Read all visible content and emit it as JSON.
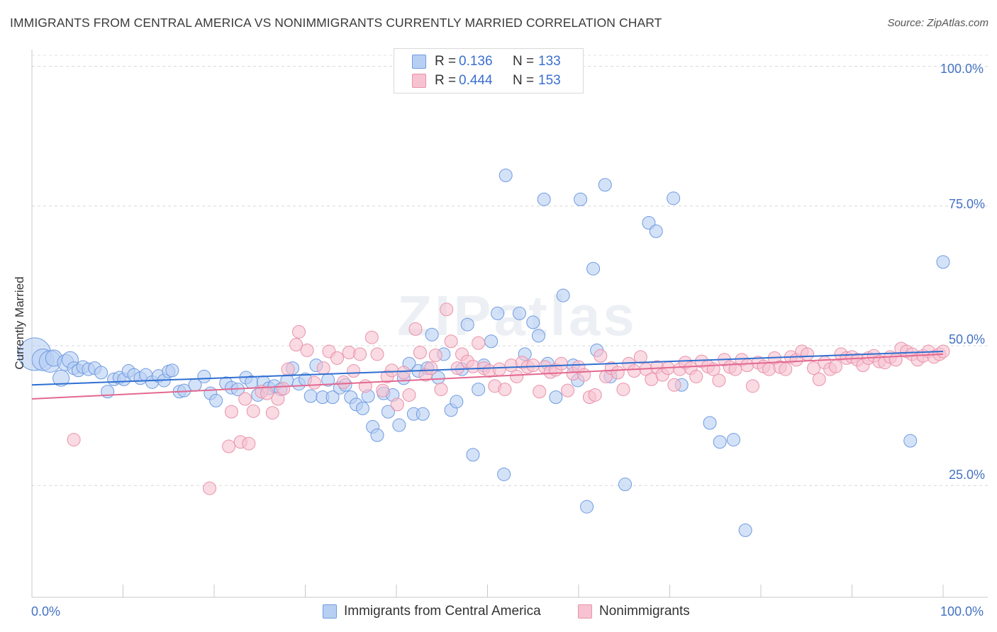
{
  "title": "IMMIGRANTS FROM CENTRAL AMERICA VS NONIMMIGRANTS CURRENTLY MARRIED CORRELATION CHART",
  "source": "Source: ZipAtlas.com",
  "watermark": "ZIPatlas",
  "chart_data": {
    "type": "scatter",
    "title": "IMMIGRANTS FROM CENTRAL AMERICA VS NONIMMIGRANTS CURRENTLY MARRIED CORRELATION CHART",
    "xlabel": "",
    "ylabel": "Currently Married",
    "xlim": [
      0,
      100
    ],
    "ylim": [
      5,
      103
    ],
    "x_tick_labels": [
      "0.0%",
      "100.0%"
    ],
    "y_ticks": [
      25,
      50,
      75,
      100
    ],
    "y_tick_labels": [
      "25.0%",
      "50.0%",
      "75.0%",
      "100.0%"
    ],
    "grid": true,
    "legend_position": "top-center",
    "legend": [
      {
        "r_label": "R =",
        "r_value": "0.136",
        "n_label": "N =",
        "n_value": "133"
      },
      {
        "r_label": "R =",
        "r_value": "0.444",
        "n_label": "N =",
        "n_value": "153"
      }
    ],
    "series": [
      {
        "name": "Immigrants from Central America",
        "color": "#6f9be0",
        "fill": "#b7cff3",
        "trend": [
          [
            0,
            43.0
          ],
          [
            100,
            49.0
          ]
        ],
        "points": [
          [
            0.3,
            48.5,
            3
          ],
          [
            1.2,
            47.5,
            2
          ],
          [
            2.0,
            47.2,
            2
          ],
          [
            2.4,
            47.8,
            1.5
          ],
          [
            3.2,
            44.2,
            1.5
          ],
          [
            3.7,
            47.0,
            1.5
          ],
          [
            4.2,
            47.5,
            1.5
          ],
          [
            4.6,
            46.0,
            1
          ],
          [
            5.1,
            45.6,
            1
          ],
          [
            5.6,
            46.2,
            1
          ],
          [
            6.2,
            45.8,
            1
          ],
          [
            6.9,
            46.0,
            1
          ],
          [
            7.6,
            45.2,
            1
          ],
          [
            8.3,
            41.8,
            1
          ],
          [
            9.0,
            44.0,
            1
          ],
          [
            9.6,
            44.3,
            1
          ],
          [
            10.1,
            44.0,
            1
          ],
          [
            10.6,
            45.5,
            1
          ],
          [
            11.2,
            44.8,
            1
          ],
          [
            11.9,
            44.2,
            1
          ],
          [
            12.5,
            44.8,
            1
          ],
          [
            13.2,
            43.5,
            1
          ],
          [
            13.9,
            44.6,
            1
          ],
          [
            14.5,
            43.8,
            1
          ],
          [
            15.0,
            45.4,
            1
          ],
          [
            15.4,
            45.6,
            1
          ],
          [
            16.2,
            41.8,
            1
          ],
          [
            16.7,
            42.0,
            1
          ],
          [
            17.9,
            43.0,
            1
          ],
          [
            18.9,
            44.5,
            1
          ],
          [
            19.6,
            41.5,
            1
          ],
          [
            20.2,
            40.2,
            1
          ],
          [
            21.3,
            43.3,
            1
          ],
          [
            21.9,
            42.5,
            1
          ],
          [
            22.6,
            42.2,
            1
          ],
          [
            23.5,
            44.3,
            1
          ],
          [
            24.1,
            43.5,
            1
          ],
          [
            24.8,
            41.2,
            1
          ],
          [
            25.4,
            43.5,
            1
          ],
          [
            26.0,
            42.4,
            1
          ],
          [
            26.6,
            42.8,
            1
          ],
          [
            27.3,
            42.2,
            1
          ],
          [
            28.0,
            43.8,
            1
          ],
          [
            28.6,
            46.0,
            1
          ],
          [
            29.3,
            43.2,
            1
          ],
          [
            30.0,
            44.0,
            1
          ],
          [
            30.6,
            41.0,
            1
          ],
          [
            31.2,
            46.5,
            1
          ],
          [
            31.9,
            40.8,
            1
          ],
          [
            32.5,
            43.9,
            1
          ],
          [
            33.0,
            40.8,
            1
          ],
          [
            33.8,
            42.5,
            1
          ],
          [
            34.4,
            43.0,
            1
          ],
          [
            35.0,
            40.8,
            1
          ],
          [
            35.6,
            39.5,
            1
          ],
          [
            36.3,
            38.8,
            1
          ],
          [
            36.9,
            41.0,
            1
          ],
          [
            37.4,
            35.5,
            1
          ],
          [
            37.9,
            34.0,
            1
          ],
          [
            38.6,
            41.5,
            1
          ],
          [
            39.1,
            38.2,
            1
          ],
          [
            39.6,
            41.2,
            1
          ],
          [
            40.3,
            35.8,
            1
          ],
          [
            40.8,
            44.2,
            1
          ],
          [
            41.4,
            46.8,
            1
          ],
          [
            41.9,
            37.8,
            1
          ],
          [
            42.4,
            45.5,
            1
          ],
          [
            42.9,
            37.8,
            1
          ],
          [
            43.4,
            46.0,
            1
          ],
          [
            43.9,
            52.0,
            1
          ],
          [
            44.6,
            44.3,
            1
          ],
          [
            45.2,
            48.5,
            1
          ],
          [
            46.0,
            38.5,
            1
          ],
          [
            46.6,
            40.0,
            1
          ],
          [
            47.2,
            45.8,
            1
          ],
          [
            47.8,
            53.8,
            1
          ],
          [
            48.4,
            30.5,
            1
          ],
          [
            49.0,
            42.2,
            1
          ],
          [
            49.6,
            46.5,
            1
          ],
          [
            50.4,
            50.8,
            1
          ],
          [
            51.1,
            55.8,
            1
          ],
          [
            51.8,
            27.0,
            1
          ],
          [
            52.0,
            80.5,
            1
          ],
          [
            53.5,
            55.8,
            1
          ],
          [
            54.1,
            48.5,
            1
          ],
          [
            55.0,
            54.2,
            1
          ],
          [
            55.6,
            51.8,
            1
          ],
          [
            56.2,
            76.2,
            1
          ],
          [
            56.6,
            46.8,
            1
          ],
          [
            57.5,
            40.8,
            1
          ],
          [
            58.3,
            59.0,
            1
          ],
          [
            59.4,
            46.5,
            1
          ],
          [
            59.9,
            43.8,
            1
          ],
          [
            60.2,
            76.2,
            1
          ],
          [
            60.9,
            21.2,
            1
          ],
          [
            61.6,
            63.8,
            1
          ],
          [
            62.0,
            49.2,
            1
          ],
          [
            62.9,
            78.8,
            1
          ],
          [
            63.5,
            44.5,
            1
          ],
          [
            65.1,
            25.2,
            1
          ],
          [
            67.7,
            72.0,
            1
          ],
          [
            68.5,
            70.5,
            1
          ],
          [
            70.4,
            76.4,
            1
          ],
          [
            71.3,
            43.0,
            1
          ],
          [
            74.4,
            36.2,
            1
          ],
          [
            75.5,
            32.8,
            1
          ],
          [
            77.0,
            33.2,
            1
          ],
          [
            78.3,
            17.0,
            1
          ],
          [
            96.4,
            33.0,
            1
          ],
          [
            100.0,
            65.0,
            1
          ]
        ]
      },
      {
        "name": "Nonimmigrants",
        "color": "#e892aa",
        "fill": "#f7c2d1",
        "trend": [
          [
            0,
            40.5
          ],
          [
            100,
            48.5
          ]
        ],
        "points": [
          [
            4.6,
            33.2,
            1
          ],
          [
            19.5,
            24.5,
            1
          ],
          [
            21.6,
            32.0,
            1
          ],
          [
            21.9,
            38.2,
            1
          ],
          [
            22.9,
            32.8,
            1
          ],
          [
            23.4,
            40.5,
            1
          ],
          [
            23.8,
            32.5,
            1
          ],
          [
            24.3,
            38.3,
            1
          ],
          [
            25.2,
            41.8,
            1
          ],
          [
            25.8,
            41.5,
            1
          ],
          [
            26.4,
            38.0,
            1
          ],
          [
            27.0,
            40.5,
            1
          ],
          [
            27.6,
            42.3,
            1
          ],
          [
            28.1,
            45.8,
            1
          ],
          [
            29.3,
            52.5,
            1
          ],
          [
            29.0,
            50.2,
            1
          ],
          [
            30.2,
            49.2,
            1
          ],
          [
            31.0,
            43.4,
            1
          ],
          [
            32.0,
            46.0,
            1
          ],
          [
            32.6,
            49.0,
            1
          ],
          [
            33.5,
            47.8,
            1
          ],
          [
            34.2,
            43.5,
            1
          ],
          [
            34.8,
            48.8,
            1
          ],
          [
            35.3,
            45.5,
            1
          ],
          [
            36.0,
            48.5,
            1
          ],
          [
            36.6,
            42.8,
            1
          ],
          [
            37.3,
            51.5,
            1
          ],
          [
            37.9,
            48.5,
            1
          ],
          [
            38.5,
            42.0,
            1
          ],
          [
            39.0,
            44.5,
            1
          ],
          [
            39.5,
            45.6,
            1
          ],
          [
            40.1,
            39.5,
            1
          ],
          [
            40.8,
            45.2,
            1
          ],
          [
            41.4,
            41.2,
            1
          ],
          [
            42.1,
            53.0,
            1
          ],
          [
            42.6,
            48.8,
            1
          ],
          [
            43.2,
            44.8,
            1
          ],
          [
            43.8,
            46.0,
            1
          ],
          [
            44.3,
            48.3,
            1
          ],
          [
            44.9,
            42.2,
            1
          ],
          [
            45.5,
            56.5,
            1
          ],
          [
            46.0,
            50.8,
            1
          ],
          [
            46.7,
            46.0,
            1
          ],
          [
            47.2,
            48.5,
            1
          ],
          [
            47.8,
            47.2,
            1
          ],
          [
            48.4,
            46.3,
            1
          ],
          [
            49.0,
            50.5,
            1
          ],
          [
            49.6,
            46.0,
            1
          ],
          [
            50.2,
            45.5,
            1
          ],
          [
            50.8,
            42.8,
            1
          ],
          [
            51.3,
            45.8,
            1
          ],
          [
            51.9,
            42.2,
            1
          ],
          [
            52.6,
            46.5,
            1
          ],
          [
            53.2,
            44.5,
            1
          ],
          [
            53.8,
            47.0,
            1
          ],
          [
            54.4,
            46.2,
            1
          ],
          [
            55.0,
            46.5,
            1
          ],
          [
            55.7,
            41.8,
            1
          ],
          [
            56.3,
            46.2,
            1
          ],
          [
            56.9,
            45.3,
            1
          ],
          [
            57.5,
            45.7,
            1
          ],
          [
            58.1,
            46.8,
            1
          ],
          [
            58.8,
            42.0,
            1
          ],
          [
            59.4,
            45.0,
            1
          ],
          [
            60.0,
            46.2,
            1
          ],
          [
            60.6,
            44.8,
            1
          ],
          [
            61.2,
            40.8,
            1
          ],
          [
            61.8,
            41.2,
            1
          ],
          [
            62.4,
            48.2,
            1
          ],
          [
            63.0,
            44.5,
            1
          ],
          [
            63.6,
            46.0,
            1
          ],
          [
            64.3,
            45.2,
            1
          ],
          [
            64.9,
            42.2,
            1
          ],
          [
            65.5,
            46.8,
            1
          ],
          [
            66.1,
            45.5,
            1
          ],
          [
            66.8,
            48.0,
            1
          ],
          [
            67.4,
            45.8,
            1
          ],
          [
            68.0,
            44.0,
            1
          ],
          [
            68.6,
            46.2,
            1
          ],
          [
            69.2,
            44.8,
            1
          ],
          [
            69.8,
            46.0,
            1
          ],
          [
            70.5,
            43.0,
            1
          ],
          [
            71.1,
            45.8,
            1
          ],
          [
            71.7,
            47.0,
            1
          ],
          [
            72.3,
            46.0,
            1
          ],
          [
            72.9,
            44.5,
            1
          ],
          [
            73.5,
            47.2,
            1
          ],
          [
            74.2,
            46.3,
            1
          ],
          [
            74.8,
            45.8,
            1
          ],
          [
            75.4,
            43.8,
            1
          ],
          [
            76.0,
            47.5,
            1
          ],
          [
            76.6,
            46.2,
            1
          ],
          [
            77.2,
            45.8,
            1
          ],
          [
            77.9,
            47.5,
            1
          ],
          [
            78.5,
            46.5,
            1
          ],
          [
            79.1,
            42.8,
            1
          ],
          [
            79.7,
            47.0,
            1
          ],
          [
            80.3,
            46.3,
            1
          ],
          [
            80.9,
            45.8,
            1
          ],
          [
            81.5,
            47.8,
            1
          ],
          [
            82.1,
            46.2,
            1
          ],
          [
            82.7,
            45.8,
            1
          ],
          [
            83.3,
            48.0,
            1
          ],
          [
            83.9,
            47.5,
            1
          ],
          [
            84.5,
            49.0,
            1
          ],
          [
            85.1,
            48.5,
            1
          ],
          [
            85.8,
            46.0,
            1
          ],
          [
            86.4,
            44.0,
            1
          ],
          [
            87.0,
            47.0,
            1
          ],
          [
            87.6,
            45.8,
            1
          ],
          [
            88.2,
            46.3,
            1
          ],
          [
            88.8,
            48.5,
            1
          ],
          [
            89.4,
            47.8,
            1
          ],
          [
            90.0,
            48.0,
            1
          ],
          [
            90.6,
            47.5,
            1
          ],
          [
            91.2,
            46.5,
            1
          ],
          [
            91.8,
            47.8,
            1
          ],
          [
            92.4,
            48.2,
            1
          ],
          [
            93.0,
            47.2,
            1
          ],
          [
            93.6,
            47.0,
            1
          ],
          [
            94.2,
            48.0,
            1
          ],
          [
            94.8,
            47.5,
            1
          ],
          [
            95.4,
            49.5,
            1
          ],
          [
            96.0,
            49.0,
            1
          ],
          [
            96.6,
            48.5,
            1
          ],
          [
            97.2,
            47.5,
            1
          ],
          [
            97.8,
            48.2,
            1
          ],
          [
            98.4,
            49.0,
            1
          ],
          [
            99.0,
            48.0,
            1
          ],
          [
            99.6,
            48.5,
            1
          ],
          [
            100.0,
            49.0,
            1
          ]
        ]
      }
    ]
  }
}
